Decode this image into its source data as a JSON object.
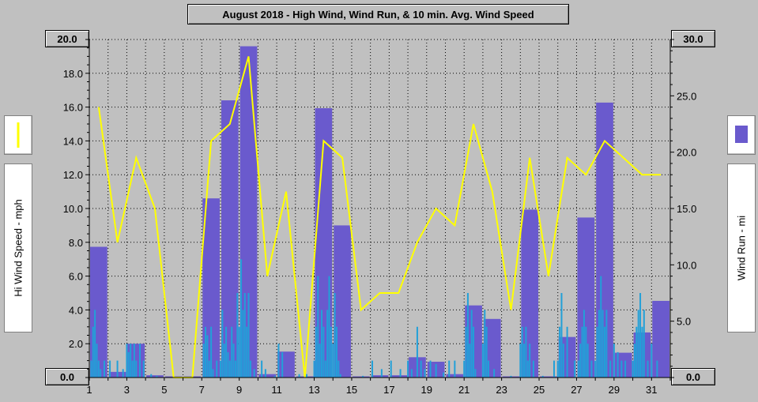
{
  "chart_data": {
    "type": "bar",
    "title": "August 2018 - High Wind, Wind Run, & 10 min. Avg. Wind Speed",
    "ylabel_left": "Hi Wind Speed - mph",
    "ylabel_right": "Wind Run - mi",
    "ylim_left": [
      0,
      20
    ],
    "ylim_right": [
      0,
      30
    ],
    "grid": true,
    "x_ticks": [
      "1",
      "3",
      "5",
      "7",
      "9",
      "11",
      "13",
      "15",
      "17",
      "19",
      "21",
      "23",
      "25",
      "27",
      "29",
      "31"
    ],
    "y_left_ticks": [
      "20.0",
      "18.0",
      "16.0",
      "14.0",
      "12.0",
      "10.0",
      "8.0",
      "6.0",
      "4.0",
      "2.0",
      "0.0"
    ],
    "y_right_ticks": [
      "30.0",
      "25.0",
      "20.0",
      "15.0",
      "10.0",
      "5.0",
      "0.0"
    ],
    "colors": {
      "wind_run": "#6a5acd",
      "hi_wind": "#ffff00",
      "avg_wind": "#22a0d8",
      "grid": "#000000"
    },
    "series": [
      {
        "name": "Wind Run",
        "axis": "right",
        "style": "bar",
        "x": [
          1,
          2,
          3,
          4,
          5,
          6,
          7,
          8,
          9,
          10,
          11,
          12,
          13,
          14,
          15,
          16,
          17,
          18,
          19,
          20,
          21,
          22,
          23,
          24,
          25,
          26,
          27,
          28,
          29,
          30,
          31
        ],
        "values": [
          11.6,
          0.5,
          3.0,
          0.2,
          0.1,
          0.1,
          15.9,
          24.6,
          29.4,
          0.3,
          2.3,
          0.1,
          23.9,
          13.5,
          0.1,
          0.2,
          0.2,
          1.8,
          1.4,
          0.3,
          6.4,
          5.2,
          0.1,
          14.9,
          0.1,
          3.6,
          14.2,
          24.4,
          2.2,
          4.0,
          6.8
        ]
      },
      {
        "name": "Hi Wind Speed",
        "axis": "left",
        "style": "line",
        "x": [
          1,
          2,
          3,
          4,
          5,
          6,
          7,
          8,
          9,
          10,
          11,
          12,
          13,
          14,
          15,
          16,
          17,
          18,
          19,
          20,
          21,
          22,
          23,
          24,
          25,
          26,
          27,
          28,
          29,
          30,
          31,
          32
        ],
        "values": [
          16.0,
          8.0,
          13.0,
          10.0,
          0.0,
          0.0,
          14.0,
          15.0,
          19.0,
          6.0,
          11.0,
          0.0,
          14.0,
          13.0,
          4.0,
          5.0,
          5.0,
          8.0,
          10.0,
          9.0,
          15.0,
          11.0,
          4.0,
          13.0,
          6.0,
          13.0,
          12.0,
          14.0,
          13.0,
          12.0,
          12.0,
          null
        ]
      },
      {
        "name": "10 min. Avg. Wind Speed",
        "axis": "left",
        "style": "impulse",
        "x": [
          1.1,
          1.2,
          1.3,
          1.4,
          1.5,
          1.6,
          1.8,
          2.1,
          2.5,
          2.8,
          3.0,
          3.1,
          3.2,
          3.3,
          3.4,
          3.5,
          3.7,
          3.9,
          4.3,
          4.6,
          7.1,
          7.2,
          7.3,
          7.4,
          7.5,
          7.6,
          7.8,
          8.0,
          8.1,
          8.2,
          8.3,
          8.4,
          8.5,
          8.6,
          8.7,
          8.8,
          8.9,
          9.0,
          9.1,
          9.2,
          9.3,
          9.4,
          9.5,
          9.6,
          9.8,
          10.2,
          10.4,
          10.9,
          11.1,
          11.3,
          12.2,
          12.6,
          13.0,
          13.1,
          13.2,
          13.3,
          13.4,
          13.5,
          13.6,
          13.7,
          13.8,
          13.9,
          14.0,
          14.1,
          14.2,
          14.3,
          14.4,
          15.6,
          16.1,
          16.6,
          17.1,
          17.6,
          18.0,
          18.2,
          18.5,
          18.7,
          18.9,
          19.2,
          19.5,
          19.9,
          20.2,
          20.5,
          21.0,
          21.1,
          21.2,
          21.3,
          21.4,
          21.5,
          21.6,
          22.0,
          22.1,
          22.2,
          22.3,
          22.6,
          23.5,
          24.0,
          24.1,
          24.2,
          24.3,
          24.4,
          24.5,
          24.7,
          25.2,
          25.8,
          26.0,
          26.1,
          26.2,
          26.3,
          26.5,
          26.9,
          27.1,
          27.2,
          27.3,
          27.4,
          27.5,
          27.6,
          27.8,
          28.0,
          28.1,
          28.2,
          28.3,
          28.4,
          28.5,
          28.6,
          28.8,
          29.0,
          29.2,
          29.4,
          29.6,
          30.0,
          30.1,
          30.2,
          30.3,
          30.4,
          30.5,
          30.6,
          30.8,
          31.0,
          31.3
        ],
        "values": [
          1.0,
          3.0,
          4.0,
          2.0,
          1.0,
          0.5,
          1.0,
          1.0,
          1.0,
          0.5,
          2.0,
          1.5,
          2.0,
          1.0,
          2.0,
          1.0,
          2.0,
          1.0,
          0.2,
          0.1,
          2.0,
          3.0,
          2.5,
          1.0,
          3.0,
          0.5,
          1.0,
          1.0,
          4.0,
          2.0,
          3.0,
          1.5,
          1.0,
          3.0,
          2.0,
          1.0,
          5.0,
          3.0,
          7.0,
          4.0,
          5.0,
          3.0,
          5.0,
          1.0,
          0.5,
          1.0,
          0.5,
          0.1,
          2.0,
          1.5,
          0.2,
          0.2,
          1.0,
          3.0,
          6.0,
          2.0,
          4.0,
          3.0,
          1.0,
          4.0,
          6.0,
          3.0,
          2.0,
          5.0,
          3.0,
          1.0,
          0.2,
          0.1,
          1.0,
          0.5,
          1.0,
          0.5,
          1.0,
          0.5,
          3.0,
          1.0,
          0.5,
          1.0,
          0.8,
          0.3,
          1.0,
          1.0,
          1.0,
          3.0,
          5.0,
          2.0,
          4.0,
          3.0,
          0.5,
          2.0,
          4.0,
          3.0,
          1.0,
          0.5,
          0.1,
          2.0,
          3.0,
          2.0,
          3.0,
          1.0,
          2.0,
          1.0,
          0.1,
          1.0,
          1.0,
          3.0,
          5.0,
          2.0,
          3.0,
          1.0,
          1.0,
          2.0,
          3.0,
          4.0,
          3.0,
          2.0,
          1.0,
          1.0,
          3.0,
          4.0,
          6.0,
          4.0,
          3.0,
          4.0,
          1.0,
          2.0,
          1.5,
          1.0,
          1.0,
          1.0,
          2.0,
          3.0,
          4.0,
          5.0,
          3.0,
          4.0,
          1.0,
          2.0,
          1.0
        ]
      }
    ]
  }
}
